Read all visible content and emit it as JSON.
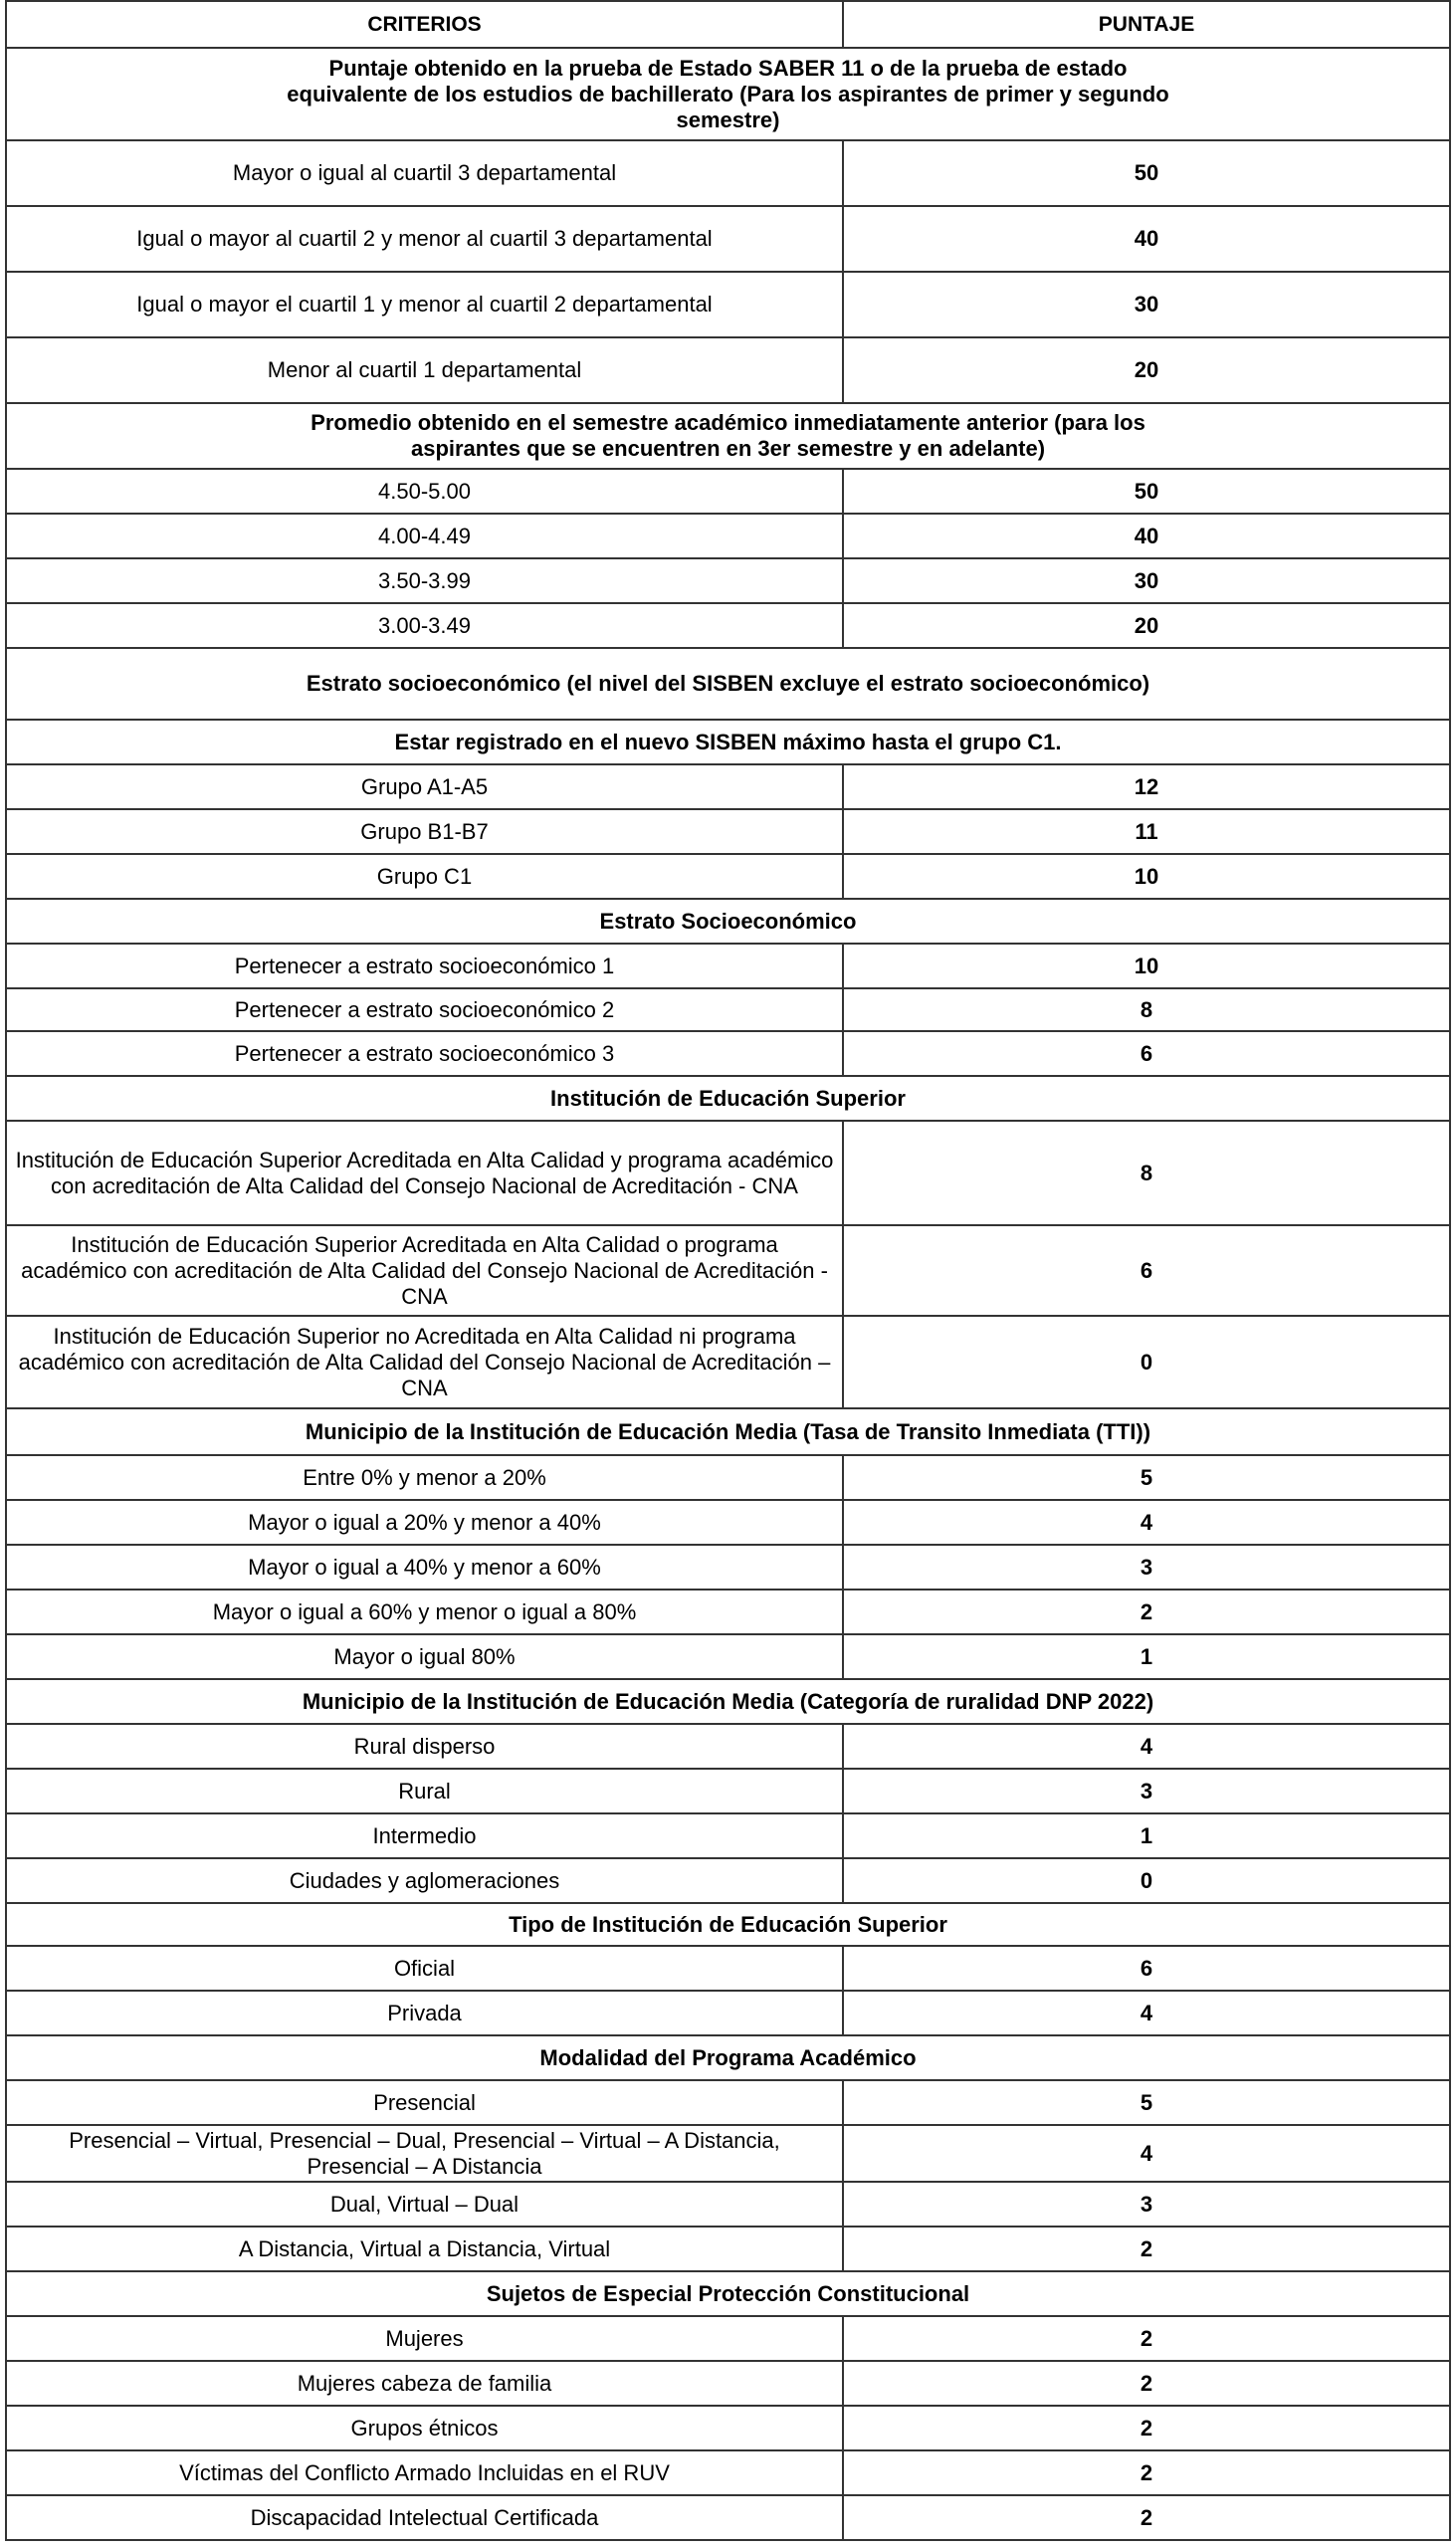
{
  "table": {
    "header": {
      "criterios": "CRITERIOS",
      "puntaje": "PUNTAJE"
    },
    "rows": [
      {
        "type": "section",
        "text": "Puntaje obtenido en la prueba de Estado SABER 11 o de la prueba de estado equivalente de los estudios de bachillerato (Para los aspirantes de primer y segundo semestre)"
      },
      {
        "type": "row",
        "criterio": "Mayor o igual al cuartil 3 departamental",
        "puntaje": "50"
      },
      {
        "type": "row",
        "criterio": "Igual o mayor al cuartil 2 y menor al cuartil 3 departamental",
        "puntaje": "40"
      },
      {
        "type": "row",
        "criterio": "Igual o mayor el cuartil 1 y menor al cuartil 2 departamental",
        "puntaje": "30"
      },
      {
        "type": "row",
        "criterio": "Menor al cuartil 1 departamental",
        "puntaje": "20"
      },
      {
        "type": "section",
        "text": "Promedio obtenido en el semestre académico inmediatamente anterior (para los aspirantes que se encuentren en 3er semestre y en adelante)"
      },
      {
        "type": "row",
        "criterio": "4.50-5.00",
        "puntaje": "50"
      },
      {
        "type": "row",
        "criterio": "4.00-4.49",
        "puntaje": "40"
      },
      {
        "type": "row",
        "criterio": "3.50-3.99",
        "puntaje": "30"
      },
      {
        "type": "row",
        "criterio": "3.00-3.49",
        "puntaje": "20"
      },
      {
        "type": "section",
        "text": "Estrato socioeconómico (el nivel del SISBEN excluye el estrato socioeconómico)"
      },
      {
        "type": "section",
        "text": "Estar registrado en el nuevo SISBEN máximo hasta el grupo C1."
      },
      {
        "type": "row",
        "criterio": "Grupo A1-A5",
        "puntaje": "12"
      },
      {
        "type": "row",
        "criterio": "Grupo B1-B7",
        "puntaje": "11"
      },
      {
        "type": "row",
        "criterio": "Grupo C1",
        "puntaje": "10"
      },
      {
        "type": "section",
        "text": "Estrato Socioeconómico"
      },
      {
        "type": "row",
        "criterio": "Pertenecer a estrato socioeconómico 1",
        "puntaje": "10"
      },
      {
        "type": "row",
        "criterio": "Pertenecer a estrato socioeconómico 2",
        "puntaje": "8"
      },
      {
        "type": "row",
        "criterio": "Pertenecer a estrato socioeconómico 3",
        "puntaje": "6"
      },
      {
        "type": "section",
        "text": "Institución de Educación Superior"
      },
      {
        "type": "row",
        "criterio": "Institución de Educación Superior Acreditada en Alta Calidad y programa académico con acreditación de Alta Calidad del Consejo Nacional de Acreditación - CNA",
        "puntaje": "8"
      },
      {
        "type": "row",
        "criterio": "Institución de Educación Superior Acreditada en Alta Calidad o programa académico con acreditación de Alta Calidad del Consejo Nacional de Acreditación - CNA",
        "puntaje": "6"
      },
      {
        "type": "row",
        "criterio": "Institución de Educación Superior no Acreditada en Alta Calidad ni programa académico con acreditación de Alta Calidad del Consejo Nacional de Acreditación – CNA",
        "puntaje": "0"
      },
      {
        "type": "section",
        "text": "Municipio de la Institución de Educación Media (Tasa de Transito Inmediata (TTI))"
      },
      {
        "type": "row",
        "criterio": "Entre 0% y menor a 20%",
        "puntaje": "5"
      },
      {
        "type": "row",
        "criterio": "Mayor o igual a 20% y menor a 40%",
        "puntaje": "4"
      },
      {
        "type": "row",
        "criterio": "Mayor o igual a 40% y menor a 60%",
        "puntaje": "3"
      },
      {
        "type": "row",
        "criterio": "Mayor o igual a 60% y menor o igual a 80%",
        "puntaje": "2"
      },
      {
        "type": "row",
        "criterio": "Mayor o igual 80%",
        "puntaje": "1"
      },
      {
        "type": "section",
        "text": "Municipio de la Institución de Educación Media (Categoría de ruralidad DNP 2022)"
      },
      {
        "type": "row",
        "criterio": "Rural disperso",
        "puntaje": "4"
      },
      {
        "type": "row",
        "criterio": "Rural",
        "puntaje": "3"
      },
      {
        "type": "row",
        "criterio": "Intermedio",
        "puntaje": "1"
      },
      {
        "type": "row",
        "criterio": "Ciudades y aglomeraciones",
        "puntaje": "0"
      },
      {
        "type": "section",
        "text": "Tipo de Institución de Educación Superior"
      },
      {
        "type": "row",
        "criterio": "Oficial",
        "puntaje": "6"
      },
      {
        "type": "row",
        "criterio": "Privada",
        "puntaje": "4"
      },
      {
        "type": "section",
        "text": "Modalidad del Programa Académico"
      },
      {
        "type": "row",
        "criterio": "Presencial",
        "puntaje": "5"
      },
      {
        "type": "row",
        "criterio": "Presencial – Virtual, Presencial – Dual, Presencial – Virtual – A Distancia, Presencial – A Distancia",
        "puntaje": "4"
      },
      {
        "type": "row",
        "criterio": "Dual, Virtual – Dual",
        "puntaje": "3"
      },
      {
        "type": "row",
        "criterio": "A Distancia, Virtual a Distancia, Virtual",
        "puntaje": "2"
      },
      {
        "type": "section",
        "text": "Sujetos de Especial Protección Constitucional"
      },
      {
        "type": "row",
        "criterio": "Mujeres",
        "puntaje": "2"
      },
      {
        "type": "row",
        "criterio": "Mujeres cabeza de familia",
        "puntaje": "2"
      },
      {
        "type": "row",
        "criterio": "Grupos étnicos",
        "puntaje": "2"
      },
      {
        "type": "row",
        "criterio": "Víctimas del Conflicto Armado Incluidas en el RUV",
        "puntaje": "2"
      },
      {
        "type": "row",
        "criterio": "Discapacidad Intelectual Certificada",
        "puntaje": "2"
      }
    ]
  }
}
